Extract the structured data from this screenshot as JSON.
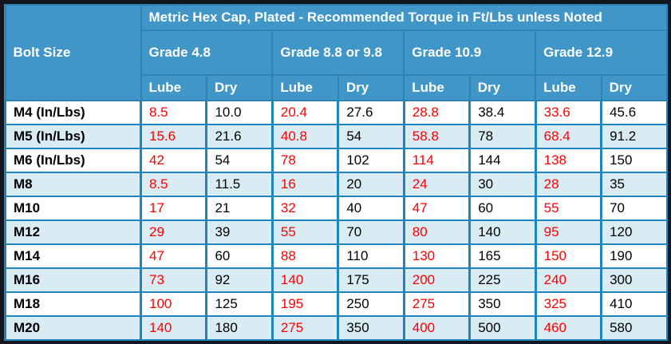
{
  "colors": {
    "outer_border": "#15161f",
    "header_bg": "#4096c7",
    "header_border": "#2b84b4",
    "header_text": "#ffffff",
    "grid_line": "#1f86bd",
    "row_bg": "#ffffff",
    "alt_row_bg": "#d9ecf4",
    "lube_text": "#fe0000",
    "dry_text": "#000000"
  },
  "chart_data": {
    "type": "table",
    "title": "Metric Hex Cap, Plated - Recommended Torque in Ft/Lbs unless Noted",
    "row_header": "Bolt Size",
    "grade_groups": [
      "Grade 4.8",
      "Grade 8.8 or 9.8",
      "Grade 10.9",
      "Grade 12.9"
    ],
    "sub_headers": [
      "Lube",
      "Dry",
      "Lube",
      "Dry",
      "Lube",
      "Dry",
      "Lube",
      "Dry"
    ],
    "units_note": "Ft/Lbs unless Noted",
    "rows": [
      {
        "bolt_size": "M4 (In/Lbs)",
        "values": [
          "8.5",
          "10.0",
          "20.4",
          "27.6",
          "28.8",
          "38.4",
          "33.6",
          "45.6"
        ]
      },
      {
        "bolt_size": "M5 (In/Lbs)",
        "values": [
          "15.6",
          "21.6",
          "40.8",
          "54",
          "58.8",
          "78",
          "68.4",
          "91.2"
        ]
      },
      {
        "bolt_size": "M6 (In/Lbs)",
        "values": [
          "42",
          "54",
          "78",
          "102",
          "114",
          "144",
          "138",
          "150"
        ]
      },
      {
        "bolt_size": "M8",
        "values": [
          "8.5",
          "11.5",
          "16",
          "20",
          "24",
          "30",
          "28",
          "35"
        ]
      },
      {
        "bolt_size": "M10",
        "values": [
          "17",
          "21",
          "32",
          "40",
          "47",
          "60",
          "55",
          "70"
        ]
      },
      {
        "bolt_size": "M12",
        "values": [
          "29",
          "39",
          "55",
          "70",
          "80",
          "140",
          "95",
          "120"
        ]
      },
      {
        "bolt_size": "M14",
        "values": [
          "47",
          "60",
          "88",
          "110",
          "130",
          "165",
          "150",
          "190"
        ]
      },
      {
        "bolt_size": "M16",
        "values": [
          "73",
          "92",
          "140",
          "175",
          "200",
          "225",
          "240",
          "300"
        ]
      },
      {
        "bolt_size": "M18",
        "values": [
          "100",
          "125",
          "195",
          "250",
          "275",
          "350",
          "325",
          "410"
        ]
      },
      {
        "bolt_size": "M20",
        "values": [
          "140",
          "180",
          "275",
          "350",
          "400",
          "500",
          "460",
          "580"
        ]
      }
    ]
  }
}
